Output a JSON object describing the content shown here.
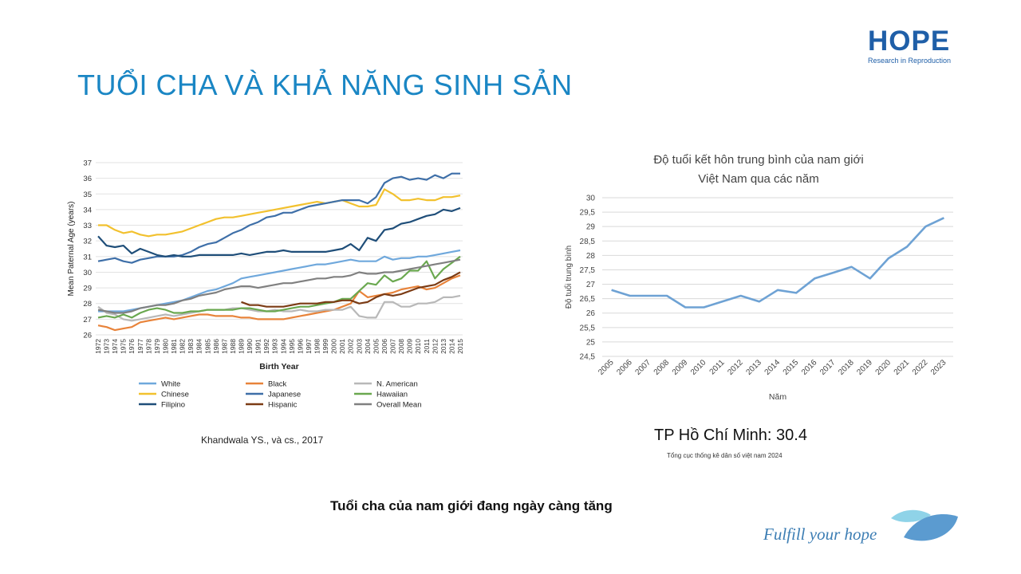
{
  "slide": {
    "title": "TUỔI CHA VÀ KHẢ NĂNG SINH SẢN",
    "logo_text": "HOPE",
    "logo_subtitle": "Research in Reproduction",
    "left_citation": "Khandwala YS., và cs., 2017",
    "hcm_stat": "TP Hồ Chí Minh: 30.4",
    "hcm_source": "Tổng cục thống kê dân số việt nam 2024",
    "footer_message": "Tuổi cha của nam giới  đang ngày càng tăng",
    "tagline": "Fulfill your hope",
    "colors": {
      "title": "#1a86c4",
      "logo": "#1f5fa8",
      "tagline": "#3d7eb4"
    }
  },
  "chart_data": [
    {
      "type": "line",
      "title": "",
      "xlabel": "Birth Year",
      "ylabel": "Mean Paternal Age (years)",
      "ylim": [
        26,
        37
      ],
      "grid": true,
      "legend": "bottom",
      "x": [
        1972,
        1973,
        1974,
        1975,
        1976,
        1977,
        1978,
        1979,
        1980,
        1981,
        1982,
        1983,
        1984,
        1985,
        1986,
        1987,
        1988,
        1989,
        1990,
        1991,
        1992,
        1993,
        1994,
        1995,
        1996,
        1997,
        1998,
        1999,
        2000,
        2001,
        2002,
        2003,
        2004,
        2005,
        2006,
        2007,
        2008,
        2009,
        2010,
        2011,
        2012,
        2013,
        2014,
        2015
      ],
      "series": [
        {
          "name": "White",
          "color": "#6fa8dc",
          "values": [
            27.5,
            27.5,
            27.5,
            27.5,
            27.6,
            27.7,
            27.8,
            27.9,
            28.0,
            28.1,
            28.2,
            28.4,
            28.6,
            28.8,
            28.9,
            29.1,
            29.3,
            29.6,
            29.7,
            29.8,
            29.9,
            30.0,
            30.1,
            30.2,
            30.3,
            30.4,
            30.5,
            30.5,
            30.6,
            30.7,
            30.8,
            30.7,
            30.7,
            30.7,
            31.0,
            30.8,
            30.9,
            30.9,
            31.0,
            31.0,
            31.1,
            31.2,
            31.3,
            31.4
          ]
        },
        {
          "name": "Black",
          "color": "#e8833a",
          "values": [
            26.6,
            26.5,
            26.3,
            26.4,
            26.5,
            26.8,
            26.9,
            27.0,
            27.1,
            27.0,
            27.1,
            27.2,
            27.3,
            27.3,
            27.2,
            27.2,
            27.2,
            27.1,
            27.1,
            27.0,
            27.0,
            27.0,
            27.0,
            27.1,
            27.2,
            27.3,
            27.4,
            27.5,
            27.6,
            27.8,
            28.0,
            28.8,
            28.4,
            28.5,
            28.6,
            28.7,
            28.9,
            29.0,
            29.1,
            28.9,
            29.0,
            29.3,
            29.6,
            29.8
          ]
        },
        {
          "name": "N. American",
          "color": "#b8b8b8",
          "values": [
            27.8,
            27.4,
            27.3,
            27.0,
            26.9,
            27.0,
            27.1,
            27.2,
            27.3,
            27.2,
            27.3,
            27.4,
            27.5,
            27.6,
            27.6,
            27.6,
            27.7,
            27.7,
            27.6,
            27.5,
            27.5,
            27.6,
            27.5,
            27.5,
            27.6,
            27.5,
            27.5,
            27.6,
            27.6,
            27.6,
            27.8,
            27.2,
            27.1,
            27.1,
            28.1,
            28.1,
            27.8,
            27.8,
            28.0,
            28.0,
            28.1,
            28.4,
            28.4,
            28.5
          ]
        },
        {
          "name": "Chinese",
          "color": "#f2c12e",
          "values": [
            33.0,
            33.0,
            32.7,
            32.5,
            32.6,
            32.4,
            32.3,
            32.4,
            32.4,
            32.5,
            32.6,
            32.8,
            33.0,
            33.2,
            33.4,
            33.5,
            33.5,
            33.6,
            33.7,
            33.8,
            33.9,
            34.0,
            34.1,
            34.2,
            34.3,
            34.4,
            34.5,
            34.4,
            34.5,
            34.6,
            34.4,
            34.2,
            34.2,
            34.3,
            35.3,
            35.0,
            34.6,
            34.6,
            34.7,
            34.6,
            34.6,
            34.8,
            34.8,
            34.9
          ]
        },
        {
          "name": "Japanese",
          "color": "#3e6fa8",
          "values": [
            30.7,
            30.8,
            30.9,
            30.7,
            30.6,
            30.8,
            30.9,
            31.0,
            31.0,
            31.0,
            31.1,
            31.3,
            31.6,
            31.8,
            31.9,
            32.2,
            32.5,
            32.7,
            33.0,
            33.2,
            33.5,
            33.6,
            33.8,
            33.8,
            34.0,
            34.2,
            34.3,
            34.4,
            34.5,
            34.6,
            34.6,
            34.6,
            34.4,
            34.8,
            35.7,
            36.0,
            36.1,
            35.9,
            36.0,
            35.9,
            36.2,
            36.0,
            36.3,
            36.3
          ]
        },
        {
          "name": "Hawaiian",
          "color": "#6aa84f",
          "values": [
            27.1,
            27.2,
            27.1,
            27.3,
            27.1,
            27.4,
            27.6,
            27.7,
            27.6,
            27.4,
            27.4,
            27.5,
            27.5,
            27.6,
            27.6,
            27.6,
            27.6,
            27.7,
            27.7,
            27.6,
            27.5,
            27.5,
            27.6,
            27.7,
            27.8,
            27.8,
            27.9,
            28.0,
            28.1,
            28.3,
            28.3,
            28.8,
            29.3,
            29.2,
            29.8,
            29.4,
            29.6,
            30.1,
            30.1,
            30.7,
            29.6,
            30.2,
            30.6,
            31.0
          ]
        },
        {
          "name": "Filipino",
          "color": "#1f4e79",
          "values": [
            32.3,
            31.7,
            31.6,
            31.7,
            31.2,
            31.5,
            31.3,
            31.1,
            31.0,
            31.1,
            31.0,
            31.0,
            31.1,
            31.1,
            31.1,
            31.1,
            31.1,
            31.2,
            31.1,
            31.2,
            31.3,
            31.3,
            31.4,
            31.3,
            31.3,
            31.3,
            31.3,
            31.3,
            31.4,
            31.5,
            31.8,
            31.4,
            32.2,
            32.0,
            32.7,
            32.8,
            33.1,
            33.2,
            33.4,
            33.6,
            33.7,
            34.0,
            33.9,
            34.1
          ]
        },
        {
          "name": "Hispanic",
          "color": "#7b3b14",
          "values": [
            null,
            null,
            null,
            null,
            null,
            null,
            null,
            null,
            null,
            null,
            null,
            null,
            null,
            null,
            null,
            null,
            null,
            28.1,
            27.9,
            27.9,
            27.8,
            27.8,
            27.8,
            27.9,
            28.0,
            28.0,
            28.0,
            28.1,
            28.1,
            28.2,
            28.2,
            28.0,
            28.1,
            28.4,
            28.6,
            28.5,
            28.6,
            28.8,
            29.0,
            29.1,
            29.2,
            29.5,
            29.7,
            30.0
          ]
        },
        {
          "name": "Overall Mean",
          "color": "#808080",
          "values": [
            27.6,
            27.5,
            27.4,
            27.4,
            27.5,
            27.7,
            27.8,
            27.9,
            27.9,
            28.0,
            28.2,
            28.3,
            28.5,
            28.6,
            28.7,
            28.9,
            29.0,
            29.1,
            29.1,
            29.0,
            29.1,
            29.2,
            29.3,
            29.3,
            29.4,
            29.5,
            29.6,
            29.6,
            29.7,
            29.7,
            29.8,
            30.0,
            29.9,
            29.9,
            30.0,
            30.0,
            30.1,
            30.2,
            30.3,
            30.4,
            30.5,
            30.6,
            30.7,
            30.8
          ]
        }
      ]
    },
    {
      "type": "line",
      "title": "Độ tuổi kết hôn trung bình của nam giới Việt Nam qua các năm",
      "title_lines": [
        "Độ tuổi kết hôn trung bình của nam giới",
        "Việt Nam qua các năm"
      ],
      "xlabel": "Năm",
      "ylabel": "Độ tuổi trung bình",
      "ylim": [
        24.5,
        30
      ],
      "yticks": [
        "24,5",
        "25",
        "25,5",
        "26",
        "26,5",
        "27",
        "27,5",
        "28",
        "28,5",
        "29",
        "29,5",
        "30"
      ],
      "grid": true,
      "categories": [
        "2005",
        "2006",
        "2007",
        "2008",
        "2009",
        "2010",
        "2011",
        "2012",
        "2013",
        "2014",
        "2015",
        "2016",
        "2017",
        "2018",
        "2019",
        "2020",
        "2021",
        "2022",
        "2023"
      ],
      "series": [
        {
          "color": "#6ea2d4",
          "values": [
            26.8,
            26.6,
            26.6,
            26.6,
            26.2,
            26.2,
            26.4,
            26.6,
            26.4,
            26.8,
            26.7,
            27.2,
            27.4,
            27.6,
            27.2,
            27.9,
            28.3,
            29.0,
            29.3
          ]
        }
      ]
    }
  ]
}
